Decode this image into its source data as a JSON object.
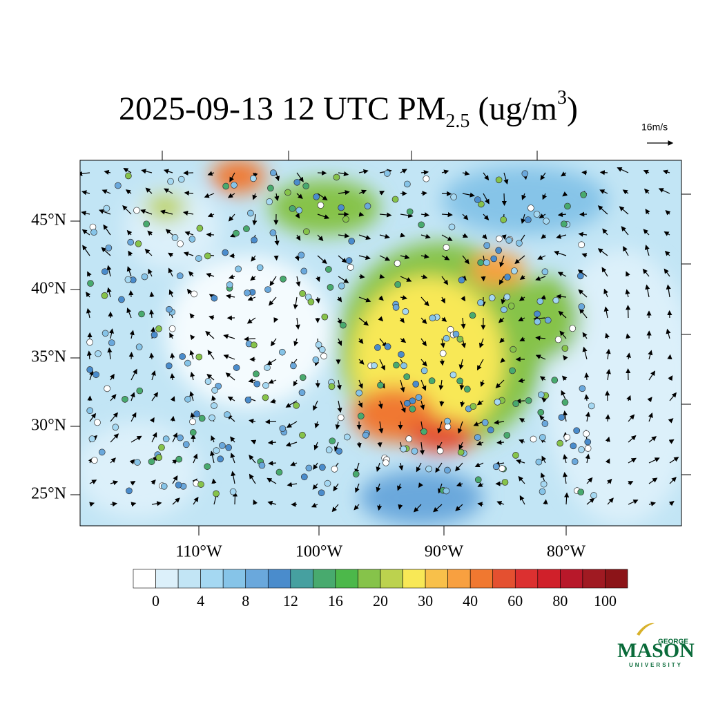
{
  "title": {
    "main": "2025-09-13 12 UTC PM",
    "sub": "2.5",
    "tail": " (ug/m",
    "sup": "3",
    "close": ")"
  },
  "reference_vector": "16m/s",
  "lat_labels": [
    "45°N",
    "40°N",
    "35°N",
    "30°N",
    "25°N"
  ],
  "lon_labels": [
    "110°W",
    "100°W",
    "90°W",
    "80°W"
  ],
  "colorbar": {
    "colors": [
      "#ffffff",
      "#dcf0fa",
      "#c2e5f5",
      "#a5d8f2",
      "#86c4e8",
      "#6aa8dc",
      "#4a8ccc",
      "#46a0a0",
      "#48aa6e",
      "#4cb84a",
      "#86c34a",
      "#bcd24e",
      "#f8e856",
      "#f8c04a",
      "#f8a040",
      "#f07830",
      "#e45030",
      "#dc3030",
      "#d0202a",
      "#b8182a",
      "#a01a22",
      "#8c1418"
    ],
    "labels": [
      0,
      4,
      8,
      12,
      16,
      20,
      30,
      40,
      60,
      80,
      100
    ]
  },
  "logo": {
    "top": "GEORGE",
    "name": "MASON",
    "bottom": "UNIVERSITY"
  }
}
